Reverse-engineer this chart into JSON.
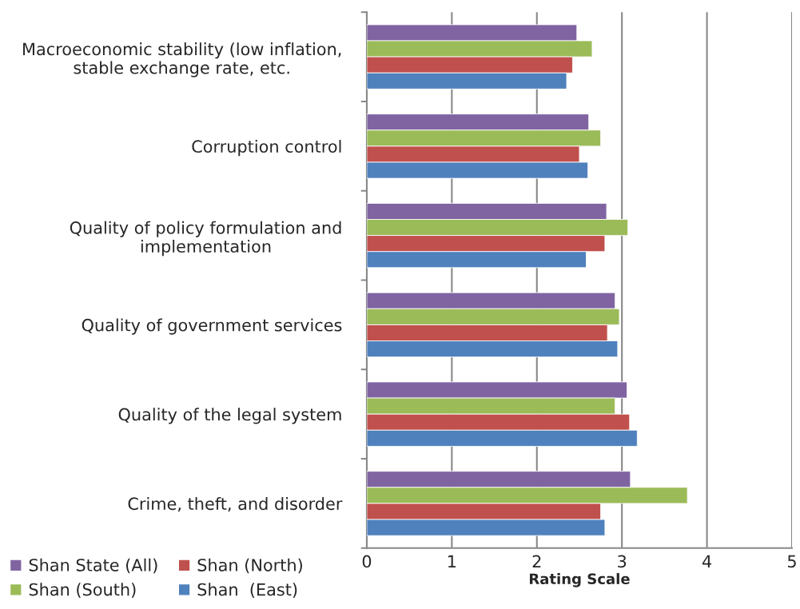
{
  "chart_data": {
    "type": "bar",
    "orientation": "horizontal",
    "xlabel": "Rating Scale",
    "categories": [
      "Macroeconomic stability (low inflation,\nstable exchange rate, etc.",
      "Corruption control",
      "Quality of policy formulation and\nimplementation",
      "Quality of government services",
      "Quality of the legal system",
      "Crime, theft, and disorder"
    ],
    "series": [
      {
        "name": "Shan State (All)",
        "color": "#8064a2",
        "values": [
          2.47,
          2.61,
          2.82,
          2.92,
          3.06,
          3.1
        ]
      },
      {
        "name": "Shan (South)",
        "color": "#9bbb59",
        "values": [
          2.65,
          2.75,
          3.07,
          2.97,
          2.92,
          3.77
        ]
      },
      {
        "name": "Shan (North)",
        "color": "#c0504d",
        "values": [
          2.42,
          2.5,
          2.8,
          2.83,
          3.09,
          2.75
        ]
      },
      {
        "name": "Shan  (East)",
        "color": "#4f81bd",
        "values": [
          2.35,
          2.6,
          2.58,
          2.95,
          3.18,
          2.8
        ]
      }
    ],
    "xlim": [
      0,
      5
    ],
    "xticks": [
      0,
      1,
      2,
      3,
      4,
      5
    ],
    "grid": "x",
    "legend": "bottom left"
  }
}
